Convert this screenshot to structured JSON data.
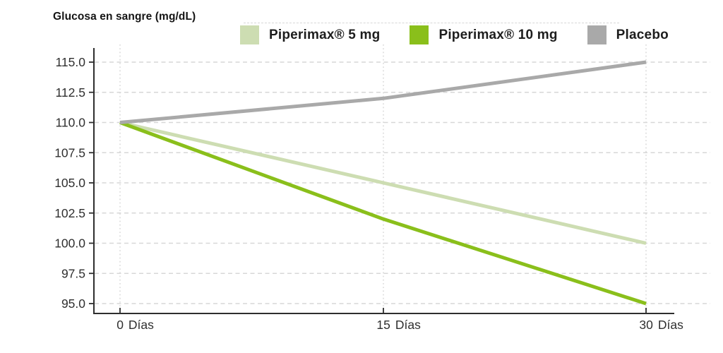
{
  "title": "Glucosa en sangre (mg/dL)",
  "legend": {
    "items": [
      {
        "label": "Piperimax® 5 mg",
        "color": "#cdddb2"
      },
      {
        "label": "Piperimax® 10 mg",
        "color": "#8abf1b"
      },
      {
        "label": "Placebo",
        "color": "#a9a9a9"
      }
    ]
  },
  "chart_data": {
    "type": "line",
    "title": "Glucosa en sangre (mg/dL)",
    "ylabel": "Glucosa en sangre (mg/dL)",
    "xlabel": "Días",
    "x": [
      0,
      15,
      30
    ],
    "x_tick_labels": [
      "0 Días",
      "15 Días",
      "30 Días"
    ],
    "ylim": [
      95,
      115
    ],
    "y_ticks": [
      95,
      97.5,
      100,
      102.5,
      105,
      107.5,
      110,
      112.5,
      115
    ],
    "y_tick_labels": [
      "95.0",
      "97.5",
      "100.0",
      "102.5",
      "105.0",
      "107.5",
      "110.0",
      "112.5",
      "115.0"
    ],
    "grid": true,
    "legend_position": "top",
    "series": [
      {
        "name": "Piperimax® 5 mg",
        "color": "#cdddb2",
        "values": [
          110,
          105,
          100
        ]
      },
      {
        "name": "Piperimax® 10 mg",
        "color": "#8abf1b",
        "values": [
          110,
          102,
          95
        ]
      },
      {
        "name": "Placebo",
        "color": "#a9a9a9",
        "values": [
          110,
          112,
          115
        ]
      }
    ]
  },
  "colors": {
    "axis": "#2e2e2e",
    "tick_label": "#2f2f2f",
    "grid_h": "#d7d7d7",
    "grid_v": "#d9d9d9",
    "background": "#ffffff"
  }
}
